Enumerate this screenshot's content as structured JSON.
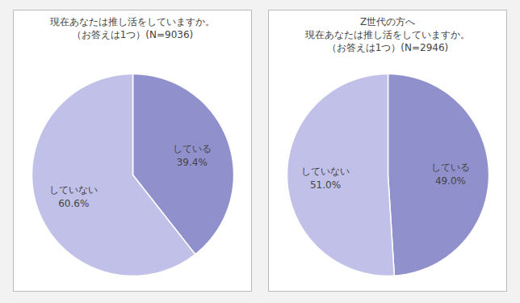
{
  "chart_data": [
    {
      "type": "pie",
      "title": "現在あなたは推し活をしていますか。\n（お答えは1つ）(N=9036)",
      "categories": [
        "している",
        "していない"
      ],
      "values": [
        39.4,
        60.6
      ],
      "value_labels": [
        "39.4%",
        "60.6%"
      ],
      "colors": [
        "#9090cc",
        "#c0c0e8"
      ],
      "data_labels": true
    },
    {
      "type": "pie",
      "title": "Z世代の方へ\n現在あなたは推し活をしていますか。\n（お答えは1つ）(N=2946)",
      "categories": [
        "している",
        "していない"
      ],
      "values": [
        49.0,
        51.0
      ],
      "value_labels": [
        "49.0%",
        "51.0%"
      ],
      "colors": [
        "#9090cc",
        "#c0c0e8"
      ],
      "data_labels": true
    }
  ]
}
